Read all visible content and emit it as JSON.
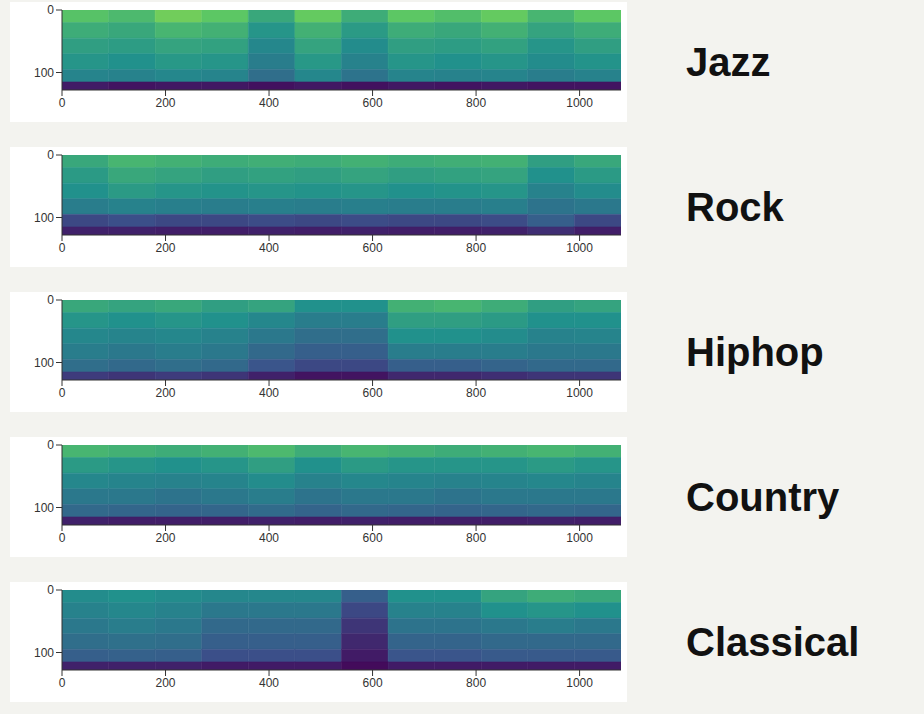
{
  "chart_data": [
    {
      "type": "heatmap",
      "title": "Jazz",
      "xlim": [
        0,
        1080
      ],
      "xticks": [
        0,
        200,
        400,
        600,
        800,
        1000
      ],
      "ylim": [
        128,
        0
      ],
      "yticks": [
        0,
        100
      ],
      "x_edges": [
        0,
        90,
        180,
        270,
        360,
        450,
        540,
        630,
        720,
        810,
        900,
        990,
        1080
      ],
      "y_edges": [
        0,
        20,
        45,
        70,
        95,
        115,
        128
      ],
      "cells": [
        [
          0.72,
          0.68,
          0.78,
          0.74,
          0.6,
          0.76,
          0.62,
          0.74,
          0.7,
          0.76,
          0.66,
          0.74
        ],
        [
          0.62,
          0.6,
          0.66,
          0.64,
          0.52,
          0.64,
          0.54,
          0.62,
          0.6,
          0.64,
          0.58,
          0.62
        ],
        [
          0.56,
          0.55,
          0.58,
          0.57,
          0.46,
          0.58,
          0.48,
          0.56,
          0.55,
          0.57,
          0.52,
          0.56
        ],
        [
          0.52,
          0.5,
          0.53,
          0.52,
          0.42,
          0.53,
          0.44,
          0.52,
          0.5,
          0.52,
          0.48,
          0.51
        ],
        [
          0.45,
          0.44,
          0.46,
          0.45,
          0.36,
          0.46,
          0.38,
          0.45,
          0.44,
          0.45,
          0.42,
          0.44
        ],
        [
          0.08,
          0.06,
          0.07,
          0.07,
          0.05,
          0.07,
          0.05,
          0.07,
          0.06,
          0.07,
          0.06,
          0.06
        ]
      ]
    },
    {
      "type": "heatmap",
      "title": "Rock",
      "xlim": [
        0,
        1080
      ],
      "xticks": [
        0,
        200,
        400,
        600,
        800,
        1000
      ],
      "ylim": [
        128,
        0
      ],
      "yticks": [
        0,
        100
      ],
      "x_edges": [
        0,
        90,
        180,
        270,
        360,
        450,
        540,
        630,
        720,
        810,
        900,
        990,
        1080
      ],
      "y_edges": [
        0,
        20,
        45,
        70,
        95,
        115,
        128
      ],
      "cells": [
        [
          0.6,
          0.66,
          0.64,
          0.62,
          0.63,
          0.62,
          0.64,
          0.62,
          0.63,
          0.64,
          0.56,
          0.6
        ],
        [
          0.54,
          0.6,
          0.58,
          0.56,
          0.57,
          0.56,
          0.58,
          0.56,
          0.57,
          0.58,
          0.5,
          0.54
        ],
        [
          0.5,
          0.54,
          0.52,
          0.51,
          0.52,
          0.51,
          0.52,
          0.5,
          0.51,
          0.52,
          0.44,
          0.48
        ],
        [
          0.42,
          0.44,
          0.43,
          0.42,
          0.43,
          0.42,
          0.43,
          0.42,
          0.42,
          0.43,
          0.38,
          0.4
        ],
        [
          0.22,
          0.24,
          0.22,
          0.22,
          0.23,
          0.22,
          0.23,
          0.22,
          0.22,
          0.23,
          0.3,
          0.22
        ],
        [
          0.1,
          0.1,
          0.09,
          0.09,
          0.1,
          0.09,
          0.1,
          0.09,
          0.09,
          0.1,
          0.14,
          0.09
        ]
      ]
    },
    {
      "type": "heatmap",
      "title": "Hiphop",
      "xlim": [
        0,
        1080
      ],
      "xticks": [
        0,
        200,
        400,
        600,
        800,
        1000
      ],
      "ylim": [
        128,
        0
      ],
      "yticks": [
        0,
        100
      ],
      "x_edges": [
        0,
        90,
        180,
        270,
        360,
        450,
        540,
        630,
        720,
        810,
        900,
        990,
        1080
      ],
      "y_edges": [
        0,
        20,
        45,
        70,
        95,
        115,
        128
      ],
      "cells": [
        [
          0.6,
          0.58,
          0.6,
          0.56,
          0.58,
          0.5,
          0.5,
          0.64,
          0.66,
          0.62,
          0.56,
          0.58
        ],
        [
          0.52,
          0.5,
          0.52,
          0.5,
          0.46,
          0.42,
          0.42,
          0.56,
          0.56,
          0.54,
          0.5,
          0.5
        ],
        [
          0.46,
          0.45,
          0.46,
          0.44,
          0.4,
          0.36,
          0.36,
          0.5,
          0.5,
          0.48,
          0.44,
          0.45
        ],
        [
          0.42,
          0.4,
          0.42,
          0.4,
          0.34,
          0.3,
          0.3,
          0.42,
          0.42,
          0.42,
          0.4,
          0.4
        ],
        [
          0.36,
          0.34,
          0.36,
          0.34,
          0.26,
          0.22,
          0.22,
          0.3,
          0.3,
          0.32,
          0.34,
          0.34
        ],
        [
          0.18,
          0.16,
          0.18,
          0.16,
          0.1,
          0.06,
          0.06,
          0.12,
          0.12,
          0.14,
          0.16,
          0.16
        ]
      ]
    },
    {
      "type": "heatmap",
      "title": "Country",
      "xlim": [
        0,
        1080
      ],
      "xticks": [
        0,
        200,
        400,
        600,
        800,
        1000
      ],
      "ylim": [
        128,
        0
      ],
      "yticks": [
        0,
        100
      ],
      "x_edges": [
        0,
        90,
        180,
        270,
        360,
        450,
        540,
        630,
        720,
        810,
        900,
        990,
        1080
      ],
      "y_edges": [
        0,
        20,
        45,
        70,
        95,
        115,
        128
      ],
      "cells": [
        [
          0.66,
          0.64,
          0.62,
          0.64,
          0.68,
          0.62,
          0.66,
          0.64,
          0.62,
          0.64,
          0.66,
          0.64
        ],
        [
          0.54,
          0.52,
          0.5,
          0.52,
          0.56,
          0.5,
          0.54,
          0.52,
          0.52,
          0.52,
          0.54,
          0.52
        ],
        [
          0.46,
          0.45,
          0.44,
          0.45,
          0.48,
          0.44,
          0.46,
          0.45,
          0.44,
          0.45,
          0.46,
          0.45
        ],
        [
          0.4,
          0.4,
          0.38,
          0.4,
          0.42,
          0.38,
          0.4,
          0.4,
          0.38,
          0.4,
          0.4,
          0.4
        ],
        [
          0.34,
          0.33,
          0.32,
          0.33,
          0.35,
          0.32,
          0.34,
          0.33,
          0.32,
          0.33,
          0.34,
          0.33
        ],
        [
          0.1,
          0.09,
          0.09,
          0.09,
          0.1,
          0.09,
          0.1,
          0.09,
          0.09,
          0.09,
          0.1,
          0.09
        ]
      ]
    },
    {
      "type": "heatmap",
      "title": "Classical",
      "xlim": [
        0,
        1080
      ],
      "xticks": [
        0,
        200,
        400,
        600,
        800,
        1000
      ],
      "ylim": [
        128,
        0
      ],
      "yticks": [
        0,
        100
      ],
      "x_edges": [
        0,
        90,
        180,
        270,
        360,
        450,
        540,
        630,
        720,
        810,
        900,
        990,
        1080
      ],
      "y_edges": [
        0,
        20,
        45,
        70,
        95,
        115,
        128
      ],
      "cells": [
        [
          0.48,
          0.5,
          0.48,
          0.46,
          0.46,
          0.46,
          0.3,
          0.5,
          0.5,
          0.58,
          0.62,
          0.6
        ],
        [
          0.44,
          0.46,
          0.44,
          0.4,
          0.4,
          0.4,
          0.22,
          0.44,
          0.44,
          0.5,
          0.52,
          0.5
        ],
        [
          0.4,
          0.42,
          0.4,
          0.34,
          0.34,
          0.34,
          0.16,
          0.38,
          0.38,
          0.4,
          0.42,
          0.4
        ],
        [
          0.36,
          0.37,
          0.36,
          0.3,
          0.3,
          0.3,
          0.12,
          0.32,
          0.32,
          0.34,
          0.34,
          0.34
        ],
        [
          0.3,
          0.31,
          0.3,
          0.24,
          0.24,
          0.24,
          0.08,
          0.26,
          0.26,
          0.28,
          0.28,
          0.28
        ],
        [
          0.1,
          0.1,
          0.1,
          0.08,
          0.08,
          0.08,
          0.03,
          0.08,
          0.08,
          0.08,
          0.08,
          0.08
        ]
      ]
    }
  ]
}
